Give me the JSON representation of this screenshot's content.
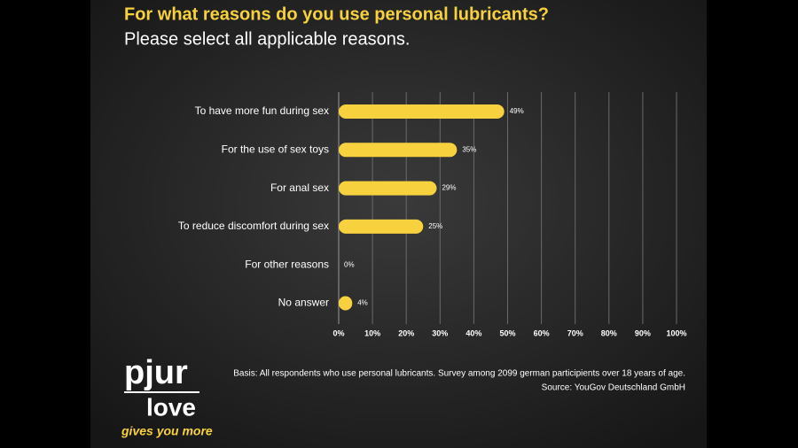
{
  "chart_data": {
    "type": "barh",
    "title": "For what reasons do you use personal lubricants?",
    "subtitle": "Please select all applicable reasons.",
    "categories": [
      "To have more fun during sex",
      "For the use of sex toys",
      "For anal sex",
      "To reduce discomfort during sex",
      "For other reasons",
      "No answer"
    ],
    "values": [
      49,
      35,
      29,
      25,
      0,
      4
    ],
    "value_labels": [
      "49%",
      "35%",
      "29%",
      "25%",
      "0%",
      "4%"
    ],
    "color": "#f7d23e",
    "xlim": [
      0,
      100
    ],
    "xticks": [
      {
        "value": 0,
        "label": "0%"
      },
      {
        "value": 10,
        "label": "10%"
      },
      {
        "value": 20,
        "label": "20%"
      },
      {
        "value": 30,
        "label": "30%"
      },
      {
        "value": 40,
        "label": "40%"
      },
      {
        "value": 50,
        "label": "50%"
      },
      {
        "value": 60,
        "label": "60%"
      },
      {
        "value": 70,
        "label": "70%"
      },
      {
        "value": 80,
        "label": "80%"
      },
      {
        "value": 90,
        "label": "90%"
      },
      {
        "value": 100,
        "label": "100%"
      }
    ],
    "grid": true,
    "notes": [
      "Basis: All respondents who use personal lubricants. Survey among 2099 german participients over 18 years of age.",
      "Source: YouGov Deutschland GmbH"
    ]
  },
  "brand": {
    "name": "pjur",
    "line2": "love",
    "tagline": "gives you more"
  }
}
